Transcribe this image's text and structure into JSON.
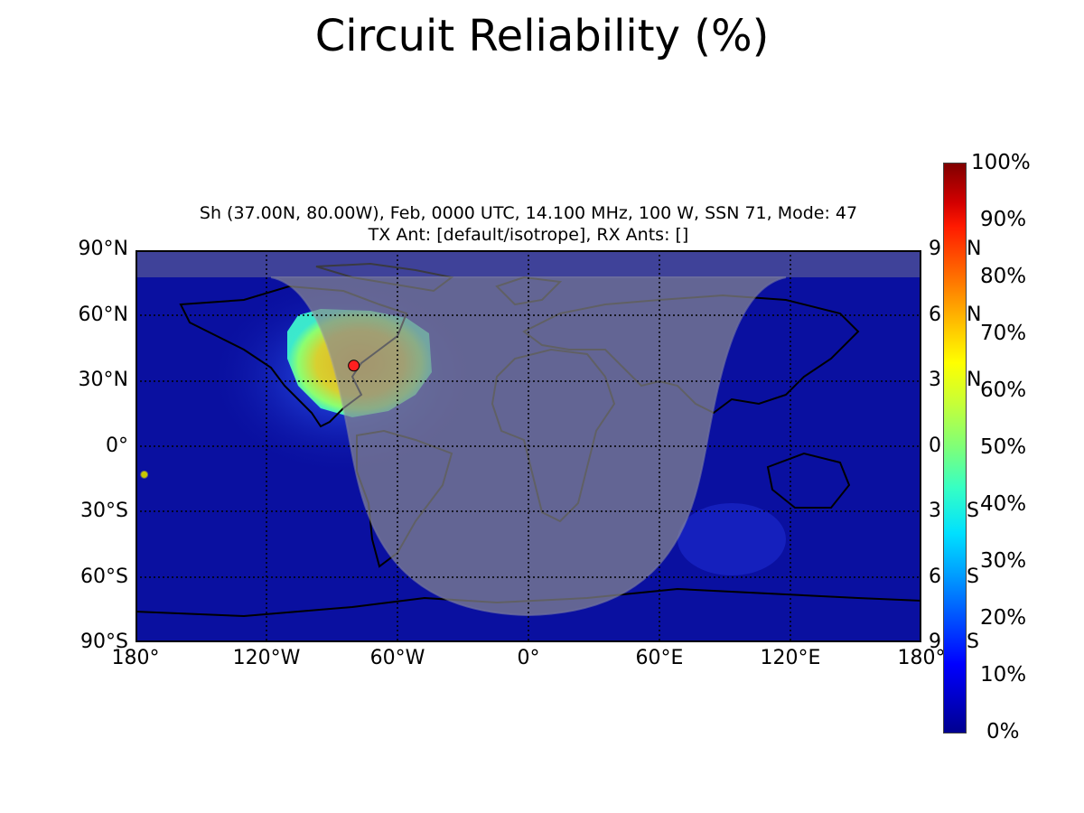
{
  "title": "Circuit Reliability (%)",
  "subtitle_line1": "Sh (37.00N,  80.00W), Feb, 0000 UTC, 14.100 MHz, 100 W, SSN 71, Mode: 47",
  "subtitle_line2": "TX Ant: [default/isotrope], RX Ants: []",
  "transmitter": {
    "lat": 37.0,
    "lon": -80.0,
    "color": "#ff2020"
  },
  "receiver_marker": {
    "lat": -13,
    "lon": -176,
    "color": "#c8c800"
  },
  "lat_labels_left": [
    "90°N",
    "60°N",
    "30°N",
    "0°",
    "30°S",
    "60°S",
    "90°S"
  ],
  "lat_labels_right": [
    "9",
    "6",
    "3",
    "0",
    "3",
    "6",
    "9"
  ],
  "lat_labels_right_suffix": [
    "N",
    "N",
    "N",
    "",
    "S",
    "S",
    "S"
  ],
  "lon_labels": [
    "180°",
    "120°W",
    "60°W",
    "0°",
    "60°E",
    "120°E",
    "180°"
  ],
  "colorbar": {
    "labels": [
      "100%",
      "90%",
      "80%",
      "70%",
      "60%",
      "50%",
      "40%",
      "30%",
      "20%",
      "10%",
      "0%"
    ],
    "min": 0,
    "max": 100
  },
  "colors": {
    "ocean_low": "#0a10a0",
    "night_overlay": "#7a7a7a",
    "high_region": "#e8c820"
  }
}
